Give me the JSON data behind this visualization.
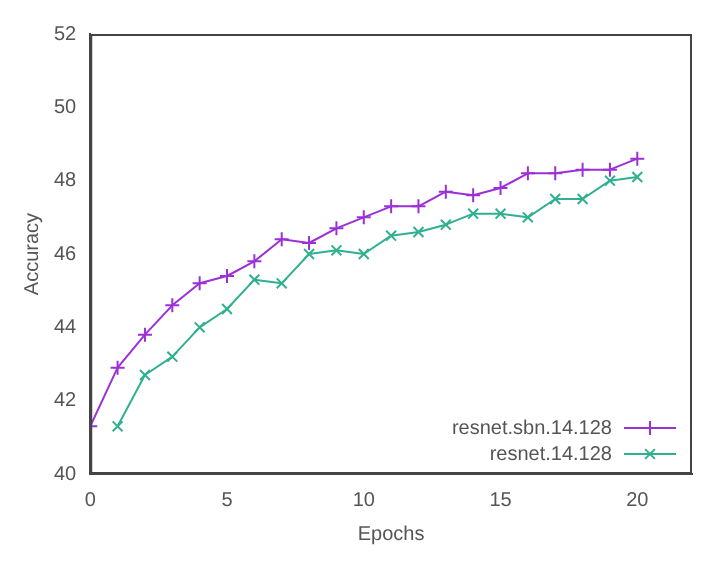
{
  "chart_data": {
    "type": "line",
    "xlabel": "Epochs",
    "ylabel": "Accuracy",
    "x": [
      0,
      1,
      2,
      3,
      4,
      5,
      6,
      7,
      8,
      9,
      10,
      11,
      12,
      13,
      14,
      15,
      16,
      17,
      18,
      19,
      20
    ],
    "xlim": [
      0,
      22
    ],
    "xticks": [
      0,
      5,
      10,
      15,
      20
    ],
    "ylim": [
      40,
      52
    ],
    "yticks": [
      40,
      42,
      44,
      46,
      48,
      50,
      52
    ],
    "grid": false,
    "legend": "bottom right",
    "line_style": "solid",
    "series": [
      {
        "name": "resnet.sbn.14.128",
        "color": "#9b30d8",
        "marker": "plus",
        "values": [
          41.3,
          42.9,
          43.8,
          44.6,
          45.2,
          45.4,
          45.8,
          46.4,
          46.3,
          46.7,
          47.0,
          47.3,
          47.3,
          47.7,
          47.6,
          47.8,
          48.2,
          48.2,
          48.3,
          48.3,
          48.6
        ]
      },
      {
        "name": "resnet.14.128",
        "color": "#30b090",
        "marker": "cross",
        "values": [
          null,
          41.3,
          42.7,
          43.2,
          44.0,
          44.5,
          45.3,
          45.2,
          46.0,
          46.1,
          46.0,
          46.5,
          46.6,
          46.8,
          47.1,
          47.1,
          47.0,
          47.5,
          47.5,
          48.0,
          48.1
        ]
      }
    ]
  }
}
